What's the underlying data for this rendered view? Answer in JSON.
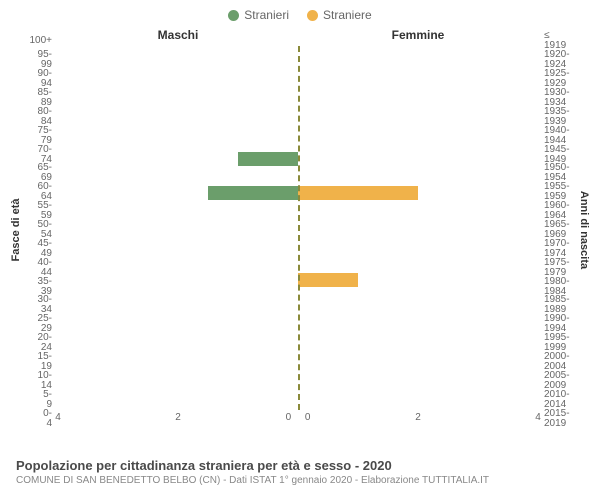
{
  "legend": {
    "male": {
      "label": "Stranieri",
      "color": "#6b9e6b"
    },
    "female": {
      "label": "Straniere",
      "color": "#f0b24a"
    }
  },
  "sections": {
    "left": "Maschi",
    "right": "Femmine"
  },
  "axis": {
    "left_title": "Fasce di età",
    "right_title": "Anni di nascita",
    "x_max": 4,
    "x_ticks": [
      4,
      2,
      0,
      0,
      2,
      4
    ],
    "centerline_color": "#8a8a3a"
  },
  "rows": [
    {
      "age": "100+",
      "birth": "≤ 1919",
      "m": 0,
      "f": 0
    },
    {
      "age": "95-99",
      "birth": "1920-1924",
      "m": 0,
      "f": 0
    },
    {
      "age": "90-94",
      "birth": "1925-1929",
      "m": 0,
      "f": 0
    },
    {
      "age": "85-89",
      "birth": "1930-1934",
      "m": 0,
      "f": 0
    },
    {
      "age": "80-84",
      "birth": "1935-1939",
      "m": 0,
      "f": 0
    },
    {
      "age": "75-79",
      "birth": "1940-1944",
      "m": 0,
      "f": 0
    },
    {
      "age": "70-74",
      "birth": "1945-1949",
      "m": 1,
      "f": 0
    },
    {
      "age": "65-69",
      "birth": "1950-1954",
      "m": 0,
      "f": 0
    },
    {
      "age": "60-64",
      "birth": "1955-1959",
      "m": 1.5,
      "f": 2
    },
    {
      "age": "55-59",
      "birth": "1960-1964",
      "m": 0,
      "f": 0
    },
    {
      "age": "50-54",
      "birth": "1965-1969",
      "m": 0,
      "f": 0
    },
    {
      "age": "45-49",
      "birth": "1970-1974",
      "m": 0,
      "f": 0
    },
    {
      "age": "40-44",
      "birth": "1975-1979",
      "m": 0,
      "f": 0
    },
    {
      "age": "35-39",
      "birth": "1980-1984",
      "m": 0,
      "f": 1
    },
    {
      "age": "30-34",
      "birth": "1985-1989",
      "m": 0,
      "f": 0
    },
    {
      "age": "25-29",
      "birth": "1990-1994",
      "m": 0,
      "f": 0
    },
    {
      "age": "20-24",
      "birth": "1995-1999",
      "m": 0,
      "f": 0
    },
    {
      "age": "15-19",
      "birth": "2000-2004",
      "m": 0,
      "f": 0
    },
    {
      "age": "10-14",
      "birth": "2005-2009",
      "m": 0,
      "f": 0
    },
    {
      "age": "5-9",
      "birth": "2010-2014",
      "m": 0,
      "f": 0
    },
    {
      "age": "0-4",
      "birth": "2015-2019",
      "m": 0,
      "f": 0
    }
  ],
  "footer": {
    "title": "Popolazione per cittadinanza straniera per età e sesso - 2020",
    "subtitle": "COMUNE DI SAN BENEDETTO BELBO (CN) - Dati ISTAT 1° gennaio 2020 - Elaborazione TUTTITALIA.IT"
  },
  "style": {
    "background": "#ffffff",
    "tick_color": "#666666",
    "title_color": "#4a4a4a",
    "subtitle_color": "#888888"
  }
}
